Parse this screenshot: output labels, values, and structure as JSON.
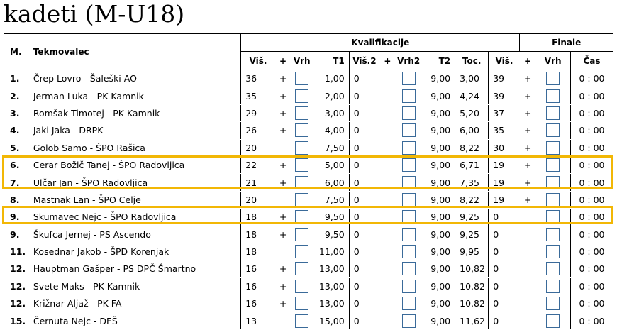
{
  "title": "kadeti (M-U18)",
  "headers": {
    "pos": "M.",
    "name": "Tekmovalec",
    "kval_group": "Kvalifikacije",
    "final_group": "Finale",
    "h1": "Viš.",
    "p1": "+",
    "vrh": "Vrh",
    "t1": "T1",
    "vis2": "Viš.2",
    "p2": "+",
    "vrh2": "Vrh2",
    "t2": "T2",
    "toc": "Toc.",
    "fvis": "Viš.",
    "fplus": "+",
    "fvrh": "Vrh",
    "cas": "Čas"
  },
  "rows": [
    {
      "pos": "1.",
      "name": "Črep Lovro - Šaleški AO",
      "vis": "36",
      "plus": "+",
      "t1": "1,00",
      "vis2": "0",
      "plus2": "",
      "t2": "9,00",
      "toc": "3,00",
      "fvis": "39",
      "fplus": "+",
      "cas": "0 : 00"
    },
    {
      "pos": "2.",
      "name": "Jerman Luka - PK Kamnik",
      "vis": "35",
      "plus": "+",
      "t1": "2,00",
      "vis2": "0",
      "plus2": "",
      "t2": "9,00",
      "toc": "4,24",
      "fvis": "39",
      "fplus": "+",
      "cas": "0 : 00"
    },
    {
      "pos": "3.",
      "name": "Romšak Timotej - PK Kamnik",
      "vis": "29",
      "plus": "+",
      "t1": "3,00",
      "vis2": "0",
      "plus2": "",
      "t2": "9,00",
      "toc": "5,20",
      "fvis": "37",
      "fplus": "+",
      "cas": "0 : 00"
    },
    {
      "pos": "4.",
      "name": "Jaki Jaka - DRPK",
      "vis": "26",
      "plus": "+",
      "t1": "4,00",
      "vis2": "0",
      "plus2": "",
      "t2": "9,00",
      "toc": "6,00",
      "fvis": "35",
      "fplus": "+",
      "cas": "0 : 00"
    },
    {
      "pos": "5.",
      "name": "Golob Samo - ŠPO Rašica",
      "vis": "20",
      "plus": "",
      "t1": "7,50",
      "vis2": "0",
      "plus2": "",
      "t2": "9,00",
      "toc": "8,22",
      "fvis": "30",
      "fplus": "+",
      "cas": "0 : 00"
    },
    {
      "pos": "6.",
      "name": "Cerar Božič Tanej  - ŠPO Radovljica",
      "vis": "22",
      "plus": "+",
      "t1": "5,00",
      "vis2": "0",
      "plus2": "",
      "t2": "9,00",
      "toc": "6,71",
      "fvis": "19",
      "fplus": "+",
      "cas": "0 : 00"
    },
    {
      "pos": "7.",
      "name": "Ulčar Jan - ŠPO Radovljica",
      "vis": "21",
      "plus": "+",
      "t1": "6,00",
      "vis2": "0",
      "plus2": "",
      "t2": "9,00",
      "toc": "7,35",
      "fvis": "19",
      "fplus": "+",
      "cas": "0 : 00"
    },
    {
      "pos": "8.",
      "name": "Mastnak Lan - ŠPO Celje",
      "vis": "20",
      "plus": "",
      "t1": "7,50",
      "vis2": "0",
      "plus2": "",
      "t2": "9,00",
      "toc": "8,22",
      "fvis": "19",
      "fplus": "+",
      "cas": "0 : 00"
    },
    {
      "pos": "9.",
      "name": "Skumavec Nejc - ŠPO Radovljica",
      "vis": "18",
      "plus": "+",
      "t1": "9,50",
      "vis2": "0",
      "plus2": "",
      "t2": "9,00",
      "toc": "9,25",
      "fvis": "0",
      "fplus": "",
      "cas": "0 : 00"
    },
    {
      "pos": "9.",
      "name": "Škufca Jernej - PS Ascendo",
      "vis": "18",
      "plus": "+",
      "t1": "9,50",
      "vis2": "0",
      "plus2": "",
      "t2": "9,00",
      "toc": "9,25",
      "fvis": "0",
      "fplus": "",
      "cas": "0 : 00"
    },
    {
      "pos": "11.",
      "name": "Kosednar Jakob - ŠPD Korenjak",
      "vis": "18",
      "plus": "",
      "t1": "11,00",
      "vis2": "0",
      "plus2": "",
      "t2": "9,00",
      "toc": "9,95",
      "fvis": "0",
      "fplus": "",
      "cas": "0 : 00"
    },
    {
      "pos": "12.",
      "name": "Hauptman Gašper - PS DPČ Šmartno",
      "vis": "16",
      "plus": "+",
      "t1": "13,00",
      "vis2": "0",
      "plus2": "",
      "t2": "9,00",
      "toc": "10,82",
      "fvis": "0",
      "fplus": "",
      "cas": "0 : 00"
    },
    {
      "pos": "12.",
      "name": "Svete Maks - PK Kamnik",
      "vis": "16",
      "plus": "+",
      "t1": "13,00",
      "vis2": "0",
      "plus2": "",
      "t2": "9,00",
      "toc": "10,82",
      "fvis": "0",
      "fplus": "",
      "cas": "0 : 00"
    },
    {
      "pos": "12.",
      "name": "Križnar Aljaž - PK FA",
      "vis": "16",
      "plus": "+",
      "t1": "13,00",
      "vis2": "0",
      "plus2": "",
      "t2": "9,00",
      "toc": "10,82",
      "fvis": "0",
      "fplus": "",
      "cas": "0 : 00"
    },
    {
      "pos": "15.",
      "name": "Černuta Nejc - DEŠ",
      "vis": "13",
      "plus": "",
      "t1": "15,00",
      "vis2": "0",
      "plus2": "",
      "t2": "9,00",
      "toc": "11,62",
      "fvis": "0",
      "fplus": "",
      "cas": "0 : 00"
    }
  ],
  "colors": {
    "highlight": "#f2b705",
    "checkbox_border": "#3a6a99"
  }
}
